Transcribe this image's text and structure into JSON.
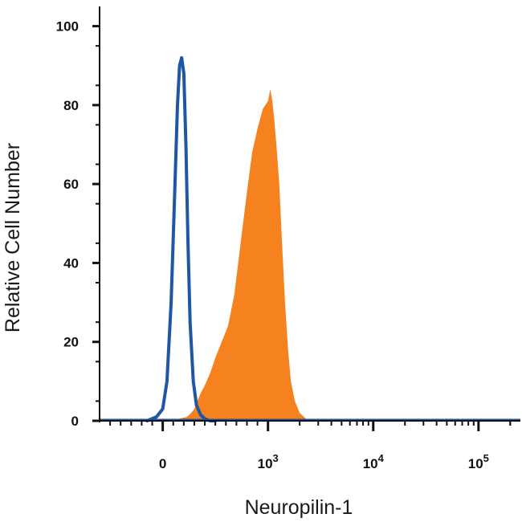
{
  "chart_data": {
    "type": "area",
    "title": "",
    "xlabel": "Neuropilin-1",
    "ylabel": "Relative Cell Number",
    "x_scale": "biexponential",
    "xlim": [
      -600,
      250000
    ],
    "ylim": [
      0,
      105
    ],
    "y_ticks": [
      0,
      20,
      40,
      60,
      80,
      100
    ],
    "x_ticks": [
      {
        "value": 0,
        "label": "0",
        "exp": ""
      },
      {
        "value": 1000,
        "label": "10",
        "exp": "3"
      },
      {
        "value": 10000,
        "label": "10",
        "exp": "4"
      },
      {
        "value": 100000,
        "label": "10",
        "exp": "5"
      }
    ],
    "grid": false,
    "legend": "none",
    "series": [
      {
        "style": "filled",
        "color": "#f5821f",
        "x": [
          60,
          150,
          230,
          270,
          300,
          330,
          360,
          400,
          450,
          500,
          560,
          620,
          680,
          740,
          800,
          850,
          900,
          950,
          1000,
          1050,
          1100,
          1150,
          1200,
          1280,
          1360,
          1450,
          1550,
          1650,
          1800,
          2000,
          2300,
          2700,
          3200,
          5000
        ],
        "y": [
          0,
          0.5,
          1,
          2,
          3,
          5,
          7,
          9,
          12,
          16,
          20,
          24,
          32,
          45,
          58,
          68,
          74,
          79,
          81,
          84,
          81,
          76,
          70,
          60,
          45,
          30,
          18,
          10,
          5,
          2,
          0.5,
          0,
          0,
          0
        ]
      },
      {
        "style": "outline",
        "color": "#1f56a5",
        "x": [
          -150,
          -60,
          0,
          40,
          80,
          110,
          140,
          160,
          180,
          200,
          220,
          240,
          260,
          290,
          320,
          360,
          400,
          450,
          500
        ],
        "y": [
          0,
          1,
          3,
          10,
          30,
          55,
          80,
          90,
          92,
          88,
          70,
          45,
          25,
          10,
          4,
          1.5,
          0.5,
          0,
          0
        ]
      }
    ]
  }
}
